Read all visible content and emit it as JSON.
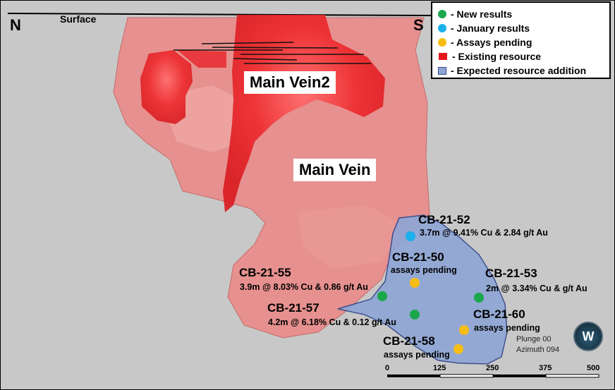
{
  "colors": {
    "background": "#c8c8c8",
    "vein_body": "#e6918f",
    "existing_resource": "#e8151b",
    "expected_addition": "#8fa6d4",
    "new_results": "#1aa84a",
    "january_results": "#1ab0ea",
    "assays_pending": "#f8bd14"
  },
  "header": {
    "left_compass": "N",
    "right_compass": "S",
    "surface": "Surface"
  },
  "legend": [
    {
      "symbol": "circle",
      "color": "#1aa84a",
      "label": "- New results"
    },
    {
      "symbol": "circle",
      "color": "#1ab0ea",
      "label": "- January results"
    },
    {
      "symbol": "circle",
      "color": "#f8bd14",
      "label": "- Assays pending"
    },
    {
      "symbol": "square",
      "color": "#e8151b",
      "label": "- Existing resource"
    },
    {
      "symbol": "rect",
      "color": "#8fa6d4",
      "label": "- Expected resource addition"
    }
  ],
  "veins": {
    "main_vein2": "Main Vein2",
    "main_vein": "Main Vein"
  },
  "drillholes": [
    {
      "id": "CB-21-52",
      "status": "january",
      "result": "3.7m @ 9.41% Cu & 2.84 g/t Au"
    },
    {
      "id": "CB-21-50",
      "status": "pending",
      "result": "assays pending"
    },
    {
      "id": "CB-21-55",
      "status": "new",
      "result": "3.9m @ 8.03% Cu & 0.86 g/t Au"
    },
    {
      "id": "CB-21-53",
      "status": "new",
      "result": "2m @ 3.34% Cu &  g/t Au"
    },
    {
      "id": "CB-21-57",
      "status": "new",
      "result": "4.2m @ 6.18% Cu & 0.12 g/t Au"
    },
    {
      "id": "CB-21-60",
      "status": "pending",
      "result": "assays pending"
    },
    {
      "id": "CB-21-58",
      "status": "pending",
      "result": "assays pending"
    }
  ],
  "view": {
    "plunge": "Plunge 00",
    "azimuth": "Azimuth 094"
  },
  "scale_bar": {
    "ticks": [
      "0",
      "125",
      "250",
      "375",
      "500"
    ]
  },
  "logo": "W"
}
